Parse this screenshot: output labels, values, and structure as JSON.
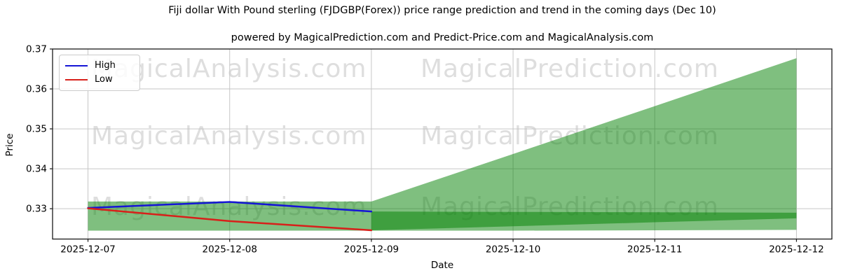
{
  "header": {
    "note": ""
  },
  "watermarks": {
    "left_text": "MagicalAnalysis.com",
    "right_text": "MagicalPrediction.com",
    "rows": 3
  },
  "chart_data": {
    "type": "line",
    "title": "Fiji dollar With Pound sterling (FJDGBP(Forex)) price range prediction and trend in the coming days (Dec 10)",
    "subtitle": "powered by MagicalPrediction.com and Predict-Price.com and MagicalAnalysis.com",
    "xlabel": "Date",
    "ylabel": "Price",
    "x_dates": [
      "2025-12-07",
      "2025-12-08",
      "2025-12-09",
      "2025-12-10",
      "2025-12-11",
      "2025-12-12"
    ],
    "yticks": [
      0.33,
      0.34,
      0.35,
      0.36,
      0.37
    ],
    "ytick_labels": [
      "0.33",
      "0.34",
      "0.35",
      "0.36",
      "0.37"
    ],
    "ylim": [
      0.3224,
      0.37
    ],
    "grid": true,
    "legend_position": "upper left",
    "legend": {
      "entries": [
        {
          "label": "High",
          "color": "#1515d6"
        },
        {
          "label": "Low",
          "color": "#d8201a"
        }
      ]
    },
    "series": [
      {
        "name": "High",
        "type": "line",
        "color": "#1515d6",
        "x": [
          0,
          1,
          2
        ],
        "values": [
          0.3302,
          0.3317,
          0.3293
        ]
      },
      {
        "name": "Low",
        "type": "line",
        "color": "#d8201a",
        "x": [
          0,
          1,
          2
        ],
        "values": [
          0.3301,
          0.3269,
          0.3246
        ]
      }
    ],
    "bands": [
      {
        "name": "historical-range",
        "x": [
          0,
          2
        ],
        "lower": [
          0.3245,
          0.3245
        ],
        "upper": [
          0.3318,
          0.3318
        ]
      },
      {
        "name": "predicted-high-range",
        "x": [
          2,
          3,
          4,
          5
        ],
        "lower": [
          0.3246,
          0.3256,
          0.3266,
          0.3276
        ],
        "upper": [
          0.3318,
          0.3437,
          0.3557,
          0.3677
        ]
      },
      {
        "name": "predicted-low-range",
        "x": [
          2,
          3,
          4,
          5
        ],
        "lower": [
          0.3245,
          0.3245,
          0.3246,
          0.3247
        ],
        "upper": [
          0.3293,
          0.3292,
          0.3291,
          0.329
        ]
      }
    ],
    "band_color": "rgba(0, 128, 0, 0.5)",
    "grid_color": "#c6c6c6",
    "spine_color": "#1a1a1a"
  }
}
